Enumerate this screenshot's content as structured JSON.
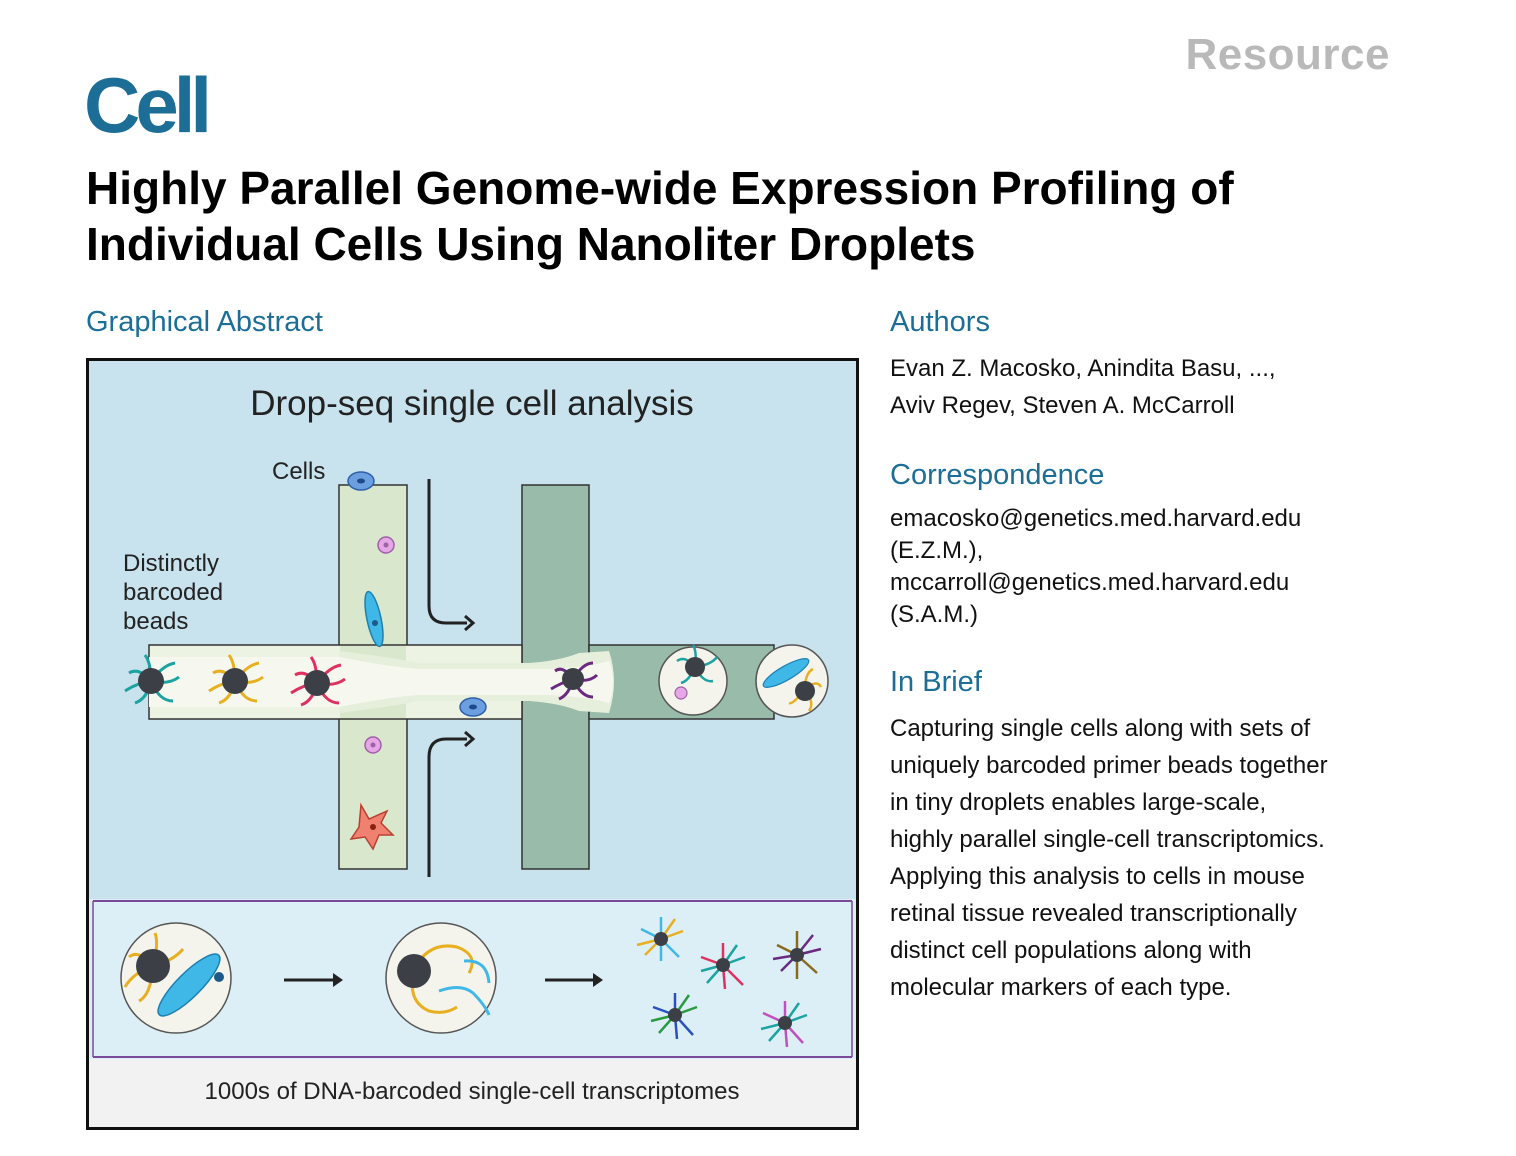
{
  "header": {
    "article_type": "Resource",
    "journal": "Cell"
  },
  "title_lines": [
    "Highly Parallel Genome-wide Expression Profiling of",
    "Individual Cells Using Nanoliter Droplets"
  ],
  "graphical_abstract": {
    "heading": "Graphical Abstract",
    "figure_title": "Drop-seq single cell analysis",
    "label_cells": "Cells",
    "label_beads": [
      "Distinctly",
      "barcoded",
      "beads"
    ],
    "caption": "1000s of DNA-barcoded single-cell transcriptomes"
  },
  "authors": {
    "heading": "Authors",
    "lines": [
      "Evan Z. Macosko, Anindita Basu, ...,",
      "Aviv Regev, Steven A. McCarroll"
    ]
  },
  "correspondence": {
    "heading": "Correspondence",
    "lines": [
      "emacosko@genetics.med.harvard.edu",
      "(E.Z.M.),",
      "mccarroll@genetics.med.harvard.edu",
      "(S.A.M.)"
    ]
  },
  "in_brief": {
    "heading": "In Brief",
    "lines": [
      "Capturing single cells along with sets of",
      "uniquely barcoded primer beads together",
      "in tiny droplets enables large-scale,",
      "highly parallel single-cell transcriptomics.",
      "Applying this analysis to cells in mouse",
      "retinal tissue revealed transcriptionally",
      "distinct cell populations along with",
      "molecular markers of each type."
    ]
  }
}
